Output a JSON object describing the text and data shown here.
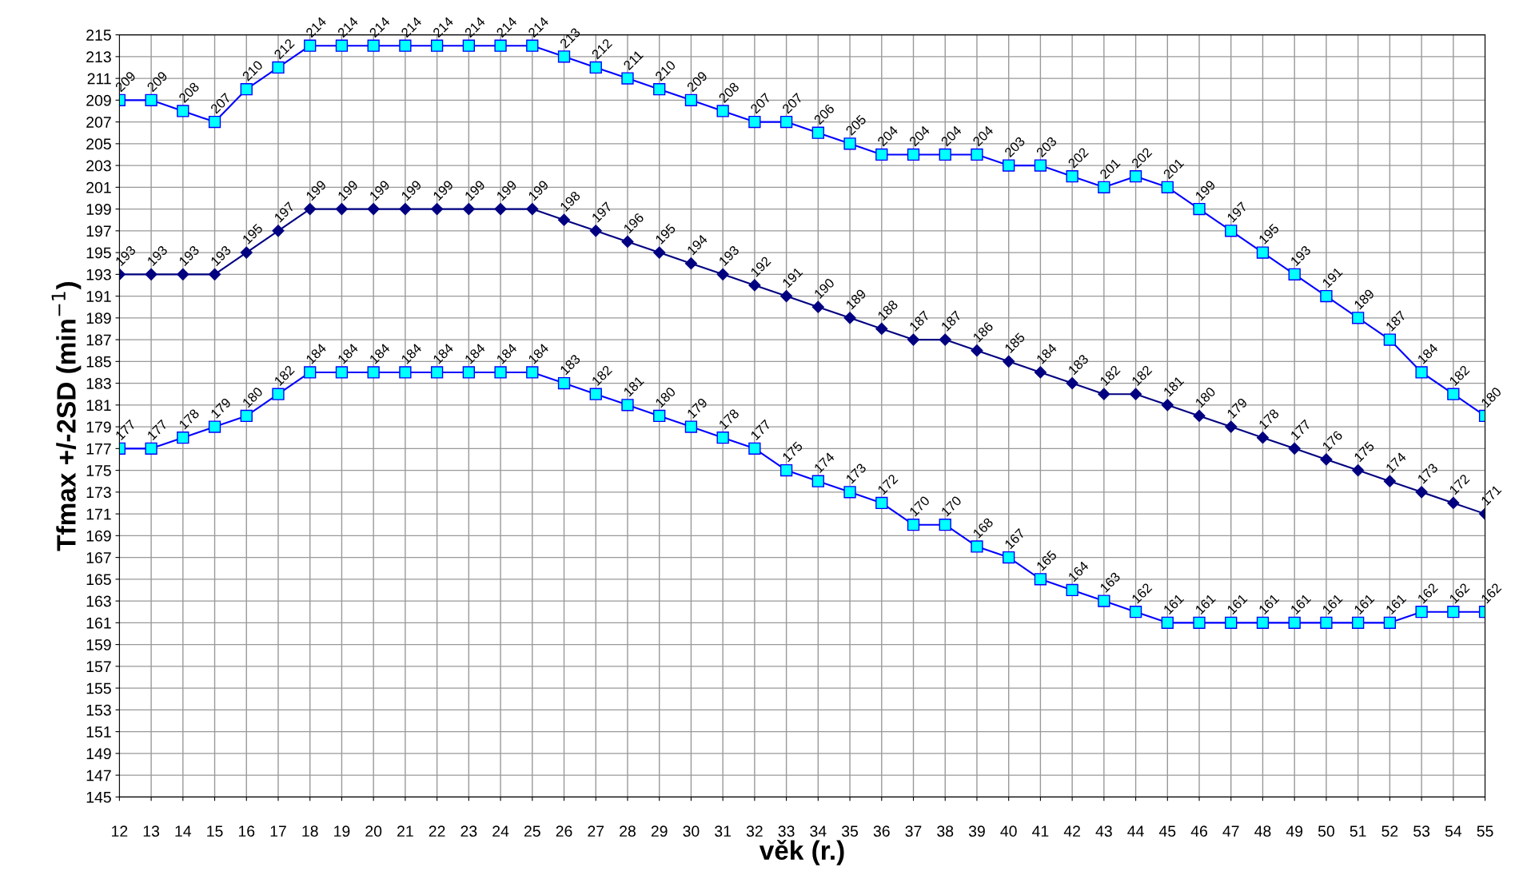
{
  "chart_data": {
    "type": "line",
    "xlabel": "věk (r.)",
    "ylabel": "Tfmax +/-2SD (min$^{−1}$)",
    "categories": [
      "12",
      "13",
      "14",
      "15",
      "16",
      "17",
      "18",
      "19",
      "20",
      "21",
      "22",
      "23",
      "24",
      "25",
      "26",
      "27",
      "28",
      "29",
      "30",
      "31",
      "32",
      "33",
      "34",
      "35",
      "36",
      "37",
      "38",
      "39",
      "40",
      "41",
      "42",
      "43",
      "44",
      "45",
      "46",
      "47",
      "48",
      "49",
      "50",
      "51",
      "52",
      "53",
      "54",
      "55"
    ],
    "series": [
      {
        "color": "#0000ff",
        "marker": "square",
        "values": [
          209,
          209,
          208,
          207,
          210,
          212,
          214,
          214,
          214,
          214,
          214,
          214,
          214,
          214,
          213,
          212,
          211,
          210,
          209,
          208,
          207,
          207,
          206,
          205,
          204,
          204,
          204,
          204,
          203,
          203,
          202,
          201,
          202,
          201,
          199,
          197,
          195,
          193,
          191,
          189,
          187,
          184,
          182,
          180
        ]
      },
      {
        "color": "#000080",
        "marker": "diamond",
        "values": [
          193,
          193,
          193,
          193,
          195,
          197,
          199,
          199,
          199,
          199,
          199,
          199,
          199,
          199,
          198,
          197,
          196,
          195,
          194,
          193,
          192,
          191,
          190,
          189,
          188,
          187,
          187,
          186,
          185,
          184,
          183,
          182,
          182,
          181,
          180,
          179,
          178,
          177,
          176,
          175,
          174,
          173,
          172,
          171
        ]
      },
      {
        "color": "#0000ff",
        "marker": "square",
        "values": [
          177,
          177,
          178,
          179,
          180,
          182,
          184,
          184,
          184,
          184,
          184,
          184,
          184,
          184,
          183,
          182,
          181,
          180,
          179,
          178,
          177,
          175,
          174,
          173,
          172,
          170,
          170,
          168,
          167,
          165,
          164,
          163,
          162,
          161,
          161,
          161,
          161,
          161,
          161,
          161,
          161,
          162,
          162,
          162
        ]
      }
    ],
    "ylim": [
      145,
      215
    ],
    "yticks": [
      145,
      147,
      149,
      151,
      153,
      155,
      157,
      159,
      161,
      163,
      165,
      167,
      169,
      171,
      173,
      175,
      177,
      179,
      181,
      183,
      185,
      187,
      189,
      191,
      193,
      195,
      197,
      199,
      201,
      203,
      205,
      207,
      209,
      211,
      213,
      215
    ],
    "grid": true,
    "data_labels": true
  }
}
